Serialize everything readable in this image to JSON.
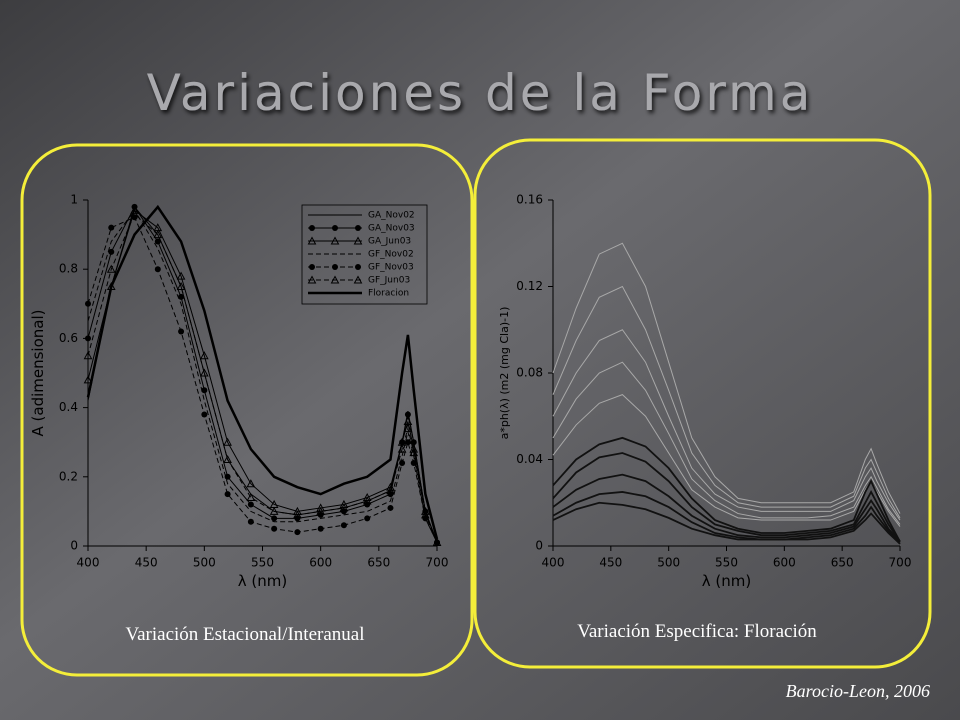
{
  "slide": {
    "title": "Variaciones de la Forma",
    "credit": "Barocio-Leon, 2006"
  },
  "chart_data": [
    {
      "type": "line",
      "caption": "Variación Estacional/Interanual",
      "xlabel": "λ (nm)",
      "ylabel": "A (adimensional)",
      "x": [
        400,
        420,
        440,
        460,
        480,
        500,
        520,
        540,
        560,
        580,
        600,
        620,
        640,
        660,
        670,
        675,
        680,
        690,
        700
      ],
      "xlim": [
        400,
        700
      ],
      "xticks": [
        400,
        450,
        500,
        550,
        600,
        650,
        700
      ],
      "ylim": [
        0,
        1
      ],
      "yticks": [
        0,
        0.2,
        0.4,
        0.6,
        0.8,
        1
      ],
      "legend": "upper right",
      "series": [
        {
          "name": "GA_Nov02",
          "color": "#000000",
          "dashed": false,
          "marker": null,
          "width": 1,
          "values": [
            0.42,
            0.75,
            0.98,
            0.9,
            0.75,
            0.5,
            0.25,
            0.15,
            0.1,
            0.09,
            0.1,
            0.11,
            0.13,
            0.16,
            0.3,
            0.39,
            0.3,
            0.1,
            0.01
          ]
        },
        {
          "name": "GA_Nov03",
          "color": "#000000",
          "dashed": false,
          "marker": "circle",
          "width": 1,
          "values": [
            0.6,
            0.85,
            0.98,
            0.88,
            0.72,
            0.45,
            0.2,
            0.12,
            0.08,
            0.08,
            0.09,
            0.1,
            0.12,
            0.15,
            0.3,
            0.38,
            0.3,
            0.1,
            0.01
          ]
        },
        {
          "name": "GA_Jun03",
          "color": "#000000",
          "dashed": false,
          "marker": "triangle",
          "width": 1,
          "values": [
            0.48,
            0.75,
            0.97,
            0.92,
            0.78,
            0.55,
            0.3,
            0.18,
            0.12,
            0.1,
            0.11,
            0.12,
            0.14,
            0.17,
            0.3,
            0.36,
            0.28,
            0.1,
            0.01
          ]
        },
        {
          "name": "GF_Nov02",
          "color": "#000000",
          "dashed": true,
          "marker": null,
          "width": 1,
          "values": [
            0.65,
            0.88,
            0.97,
            0.86,
            0.7,
            0.42,
            0.18,
            0.1,
            0.07,
            0.07,
            0.08,
            0.09,
            0.1,
            0.13,
            0.26,
            0.33,
            0.26,
            0.08,
            0.01
          ]
        },
        {
          "name": "GF_Nov03",
          "color": "#000000",
          "dashed": true,
          "marker": "circle",
          "width": 1,
          "values": [
            0.7,
            0.92,
            0.95,
            0.8,
            0.62,
            0.38,
            0.15,
            0.07,
            0.05,
            0.04,
            0.05,
            0.06,
            0.08,
            0.11,
            0.24,
            0.3,
            0.24,
            0.08,
            0.01
          ]
        },
        {
          "name": "GF_Jun03",
          "color": "#000000",
          "dashed": true,
          "marker": "triangle",
          "width": 1,
          "values": [
            0.55,
            0.8,
            0.96,
            0.9,
            0.75,
            0.5,
            0.25,
            0.14,
            0.1,
            0.09,
            0.1,
            0.11,
            0.13,
            0.16,
            0.28,
            0.34,
            0.27,
            0.09,
            0.01
          ]
        },
        {
          "name": "Floracion",
          "color": "#000000",
          "dashed": false,
          "marker": null,
          "width": 2.5,
          "values": [
            0.43,
            0.75,
            0.9,
            0.98,
            0.88,
            0.68,
            0.42,
            0.28,
            0.2,
            0.17,
            0.15,
            0.18,
            0.2,
            0.25,
            0.5,
            0.61,
            0.45,
            0.15,
            0.02
          ]
        }
      ]
    },
    {
      "type": "line",
      "caption": "Variación  Especifica: Floración",
      "xlabel": "λ (nm)",
      "ylabel": "a*ph(λ) (m2 (mg Cla)-1)",
      "x": [
        400,
        420,
        440,
        460,
        480,
        500,
        520,
        540,
        560,
        580,
        600,
        620,
        640,
        660,
        670,
        675,
        680,
        690,
        700
      ],
      "xlim": [
        400,
        700
      ],
      "xticks": [
        400,
        450,
        500,
        550,
        600,
        650,
        700
      ],
      "ylim": [
        0,
        0.16
      ],
      "yticks": [
        0,
        0.04,
        0.08,
        0.12,
        0.16
      ],
      "series": [
        {
          "color": "#a8a8a8",
          "width": 1,
          "values": [
            0.08,
            0.11,
            0.135,
            0.14,
            0.12,
            0.085,
            0.05,
            0.032,
            0.022,
            0.02,
            0.02,
            0.02,
            0.02,
            0.025,
            0.04,
            0.045,
            0.038,
            0.025,
            0.015
          ]
        },
        {
          "color": "#a8a8a8",
          "width": 1,
          "values": [
            0.07,
            0.095,
            0.115,
            0.12,
            0.1,
            0.072,
            0.043,
            0.028,
            0.02,
            0.018,
            0.018,
            0.018,
            0.018,
            0.023,
            0.036,
            0.04,
            0.034,
            0.022,
            0.013
          ]
        },
        {
          "color": "#a8a8a8",
          "width": 1,
          "values": [
            0.06,
            0.08,
            0.095,
            0.1,
            0.085,
            0.06,
            0.036,
            0.024,
            0.018,
            0.016,
            0.016,
            0.016,
            0.016,
            0.021,
            0.032,
            0.036,
            0.03,
            0.02,
            0.012
          ]
        },
        {
          "color": "#a8a8a8",
          "width": 1,
          "values": [
            0.05,
            0.068,
            0.08,
            0.085,
            0.072,
            0.052,
            0.031,
            0.021,
            0.015,
            0.013,
            0.013,
            0.013,
            0.014,
            0.018,
            0.028,
            0.032,
            0.027,
            0.017,
            0.01
          ]
        },
        {
          "color": "#a8a8a8",
          "width": 1,
          "values": [
            0.042,
            0.056,
            0.066,
            0.07,
            0.06,
            0.043,
            0.026,
            0.018,
            0.013,
            0.012,
            0.012,
            0.012,
            0.012,
            0.016,
            0.026,
            0.03,
            0.025,
            0.016,
            0.009
          ]
        },
        {
          "color": "#111111",
          "width": 1.8,
          "values": [
            0.028,
            0.04,
            0.047,
            0.05,
            0.046,
            0.036,
            0.022,
            0.012,
            0.008,
            0.006,
            0.006,
            0.007,
            0.008,
            0.012,
            0.025,
            0.03,
            0.024,
            0.012,
            0.002
          ]
        },
        {
          "color": "#111111",
          "width": 1.8,
          "values": [
            0.022,
            0.034,
            0.041,
            0.043,
            0.039,
            0.03,
            0.018,
            0.01,
            0.007,
            0.005,
            0.005,
            0.006,
            0.007,
            0.01,
            0.02,
            0.025,
            0.02,
            0.01,
            0.002
          ]
        },
        {
          "color": "#111111",
          "width": 1.8,
          "values": [
            0.018,
            0.026,
            0.031,
            0.033,
            0.03,
            0.023,
            0.014,
            0.008,
            0.005,
            0.004,
            0.004,
            0.005,
            0.006,
            0.009,
            0.017,
            0.021,
            0.017,
            0.008,
            0.002
          ]
        },
        {
          "color": "#111111",
          "width": 1.8,
          "values": [
            0.014,
            0.02,
            0.024,
            0.025,
            0.023,
            0.018,
            0.011,
            0.006,
            0.004,
            0.003,
            0.003,
            0.004,
            0.005,
            0.008,
            0.014,
            0.018,
            0.014,
            0.007,
            0.001
          ]
        },
        {
          "color": "#111111",
          "width": 1.8,
          "values": [
            0.012,
            0.017,
            0.02,
            0.019,
            0.017,
            0.013,
            0.008,
            0.005,
            0.003,
            0.003,
            0.003,
            0.003,
            0.004,
            0.007,
            0.012,
            0.015,
            0.012,
            0.006,
            0.001
          ]
        }
      ]
    }
  ]
}
